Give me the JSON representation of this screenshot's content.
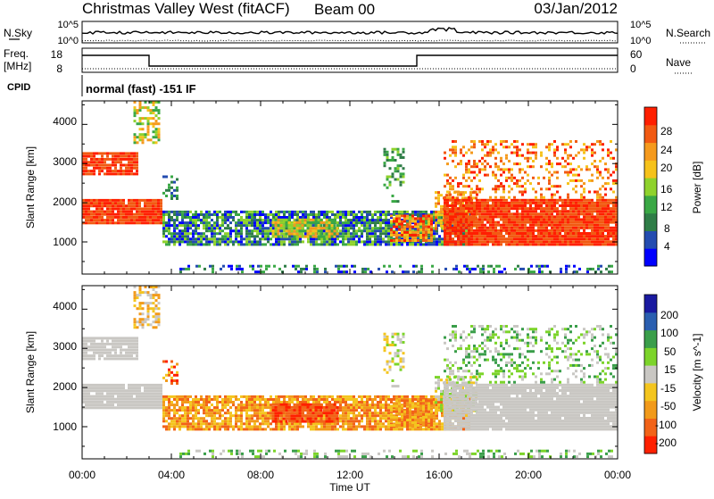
{
  "header": {
    "station": "Christmas Valley West (fitACF)",
    "beam": "Beam 00",
    "date": "03/Jan/2012"
  },
  "strips": {
    "nsky_label": "N.Sky",
    "nsearch_label": "N.Search",
    "nsky_ticks": [
      "10^5",
      "10^0"
    ],
    "nsearch_ticks": [
      "10^5",
      "10^0"
    ],
    "freq_label_1": "Freq.",
    "freq_label_2": "[MHz]",
    "freq_ticks": [
      "18",
      "8"
    ],
    "nave_label": "Nave",
    "nave_ticks": [
      "60",
      "0"
    ],
    "cpid_label": "CPID",
    "cpid_text": "normal (fast) -151 IF"
  },
  "colors": {
    "frame": "#000000",
    "power_scale": [
      "#0000ff",
      "#244cb0",
      "#2f7d47",
      "#3aa845",
      "#8fd22c",
      "#f6c21b",
      "#f59a1d",
      "#f25a12",
      "#ff1f00"
    ],
    "velocity_scale": [
      "#ff2000",
      "#f26318",
      "#f29a1a",
      "#f4c51e",
      "#c9c7c3",
      "#7cd42a",
      "#3a9e4a",
      "#2a5fb0",
      "#1a1aa0"
    ]
  },
  "chart_data": [
    {
      "type": "heatmap",
      "name": "power",
      "ylabel": "Slant Range [km]",
      "yticks": [
        "4000",
        "3000",
        "2000",
        "1000"
      ],
      "ylim": [
        180,
        4600
      ],
      "colorbar_label": "Power [dB]",
      "colorbar_ticks": [
        "28",
        "24",
        "20",
        "16",
        "12",
        "8",
        "4"
      ],
      "clim": [
        0,
        32
      ]
    },
    {
      "type": "heatmap",
      "name": "velocity",
      "ylabel": "Slant Range [km]",
      "yticks": [
        "4000",
        "3000",
        "2000",
        "1000"
      ],
      "ylim": [
        180,
        4600
      ],
      "colorbar_label": "Velocity [m s^-1]",
      "colorbar_ticks": [
        "200",
        "100",
        "50",
        "15",
        "-15",
        "-50",
        "-100",
        "-200"
      ]
    }
  ],
  "xaxis": {
    "label": "Time UT",
    "ticks": [
      "00:00",
      "04:00",
      "08:00",
      "12:00",
      "16:00",
      "20:00",
      "00:00"
    ]
  }
}
